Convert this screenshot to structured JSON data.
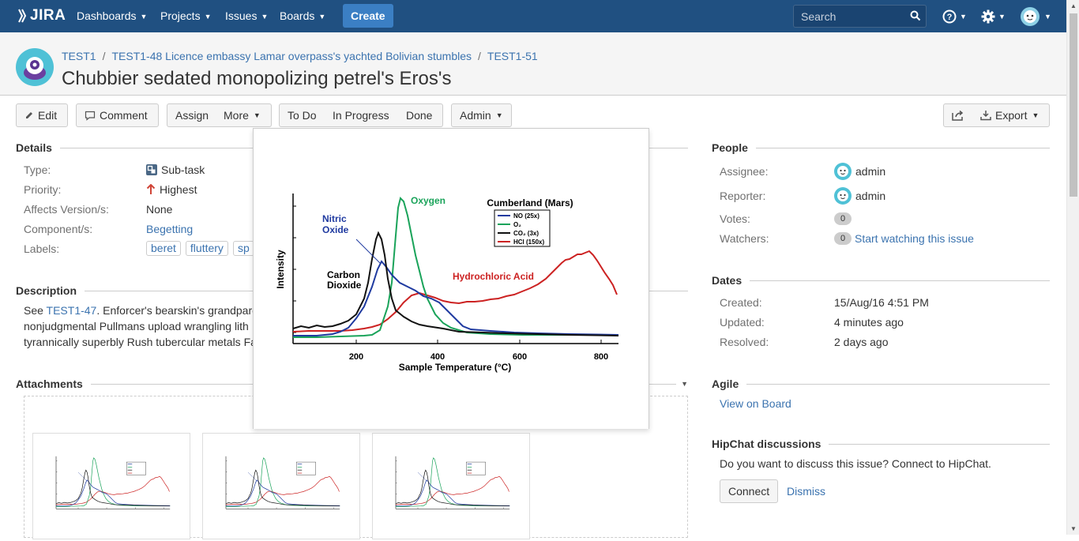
{
  "nav": {
    "logo": "JIRA",
    "dashboards": "Dashboards",
    "projects": "Projects",
    "issues": "Issues",
    "boards": "Boards",
    "create": "Create",
    "search_placeholder": "Search",
    "icons": [
      "search-icon",
      "help-icon",
      "gear-icon",
      "user-avatar"
    ]
  },
  "header": {
    "breadcrumbs": [
      "TEST1",
      "TEST1-48 Licence embassy Lamar overpass's yachted Bolivian stumbles",
      "TEST1-51"
    ],
    "title": "Chubbier sedated monopolizing petrel's Eros's"
  },
  "toolbar": {
    "edit": "Edit",
    "comment": "Comment",
    "assign": "Assign",
    "more": "More",
    "todo": "To Do",
    "in_progress": "In Progress",
    "done": "Done",
    "admin": "Admin",
    "export": "Export"
  },
  "details": {
    "heading": "Details",
    "type_label": "Type:",
    "type_value": "Sub-task",
    "priority_label": "Priority:",
    "priority_value": "Highest",
    "affects_label": "Affects Version/s:",
    "affects_value": "None",
    "component_label": "Component/s:",
    "component_value": "Begetting",
    "labels_label": "Labels:",
    "labels": [
      "beret",
      "fluttery",
      "sp"
    ]
  },
  "description": {
    "heading": "Description",
    "line1_prefix": "See ",
    "line1_link": "TEST1-47",
    "line1_rest": ". Enforcer's bearskin's grandparen",
    "line2": "nonjudgmental Pullmans upload wrangling lith",
    "line3": "tyrannically superbly Rush tubercular metals Fa"
  },
  "attachments": {
    "heading": "Attachments"
  },
  "people": {
    "heading": "People",
    "assignee_label": "Assignee:",
    "assignee": "admin",
    "reporter_label": "Reporter:",
    "reporter": "admin",
    "votes_label": "Votes:",
    "votes": "0",
    "watchers_label": "Watchers:",
    "watchers": "0",
    "watch_link": "Start watching this issue"
  },
  "dates": {
    "heading": "Dates",
    "created_label": "Created:",
    "created": "15/Aug/16 4:51 PM",
    "updated_label": "Updated:",
    "updated": "4 minutes ago",
    "resolved_label": "Resolved:",
    "resolved": "2 days ago"
  },
  "agile": {
    "heading": "Agile",
    "link": "View on Board"
  },
  "hipchat": {
    "heading": "HipChat discussions",
    "text": "Do you want to discuss this issue? Connect to HipChat.",
    "connect": "Connect",
    "dismiss": "Dismiss"
  },
  "figure": {
    "title": "Cumberland (Mars)",
    "xlabel": "Sample Temperature (°C)",
    "ylabel": "Intensity",
    "xticks": [
      "200",
      "400",
      "600",
      "800"
    ],
    "legend": [
      "NO (25x)",
      "O₂",
      "CO₂ (3x)",
      "HCl (150x)"
    ],
    "annot_oxygen": "Oxygen",
    "annot_nitric1": "Nitric",
    "annot_nitric2": "Oxide",
    "annot_carbon1": "Carbon",
    "annot_carbon2": "Dioxide",
    "annot_hcl": "Hydrochloric Acid",
    "colors": {
      "no": "#1f3aa0",
      "o2": "#1aa35a",
      "co2": "#111111",
      "hcl": "#cc2222"
    }
  }
}
